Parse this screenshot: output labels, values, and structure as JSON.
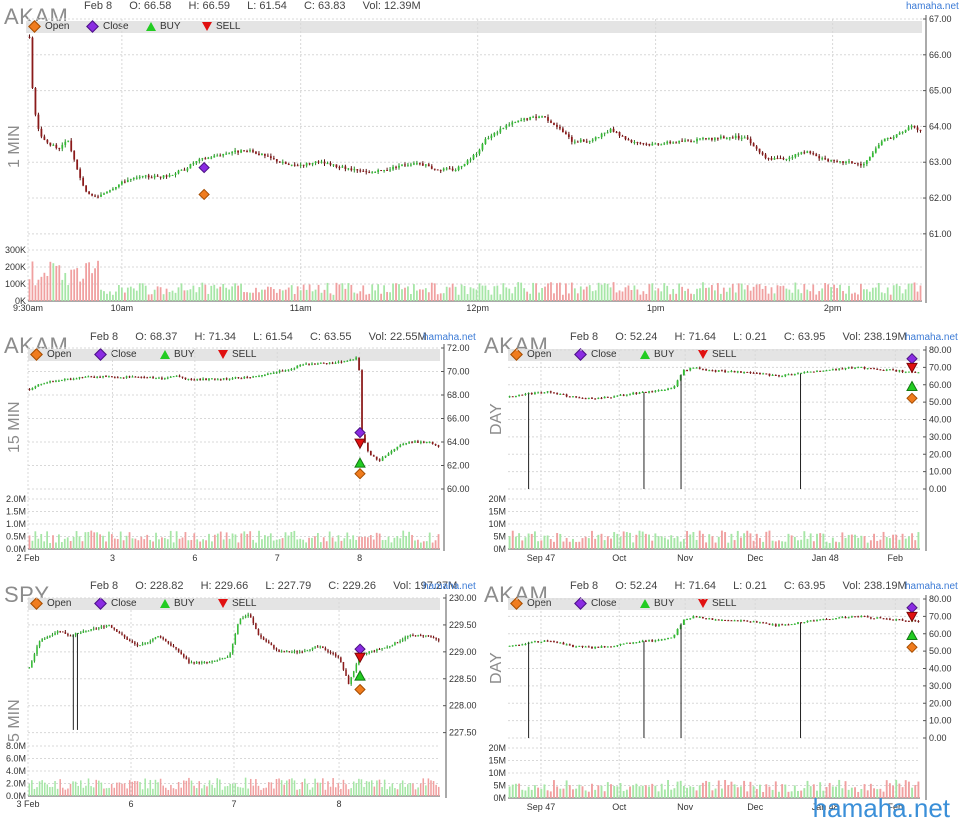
{
  "source_label": "hamaha.net",
  "brand_watermark": "hamaha.net",
  "legend": {
    "open": "Open",
    "close": "Close",
    "buy": "BUY",
    "sell": "SELL"
  },
  "colors": {
    "up": "#33bb33",
    "down": "#8b1a1a",
    "vol_up": "#a6e6a6",
    "vol_down": "#f0a0a0",
    "grid": "#d8d8d8",
    "legend_bg": "#e4e4e4",
    "open_marker": "#f07c1e",
    "close_marker": "#8a2be2",
    "buy_marker": "#22cc22",
    "sell_marker": "#e01010",
    "brand": "#3a8fd8"
  },
  "panels": [
    {
      "symbol": "AKAM",
      "period": "1 MIN",
      "header": {
        "date": "Feb 8",
        "o": "O: 66.58",
        "h": "H: 66.59",
        "l": "L: 61.54",
        "c": "C: 63.83",
        "vol": "Vol: 12.39M"
      },
      "chart_data": {
        "type": "candlestick",
        "price_ticks": [
          "67.00",
          "66.00",
          "65.00",
          "64.00",
          "63.00",
          "62.00",
          "61.00"
        ],
        "price_range": [
          60.8,
          67.0
        ],
        "volume_ticks": [
          "300K",
          "200K",
          "100K",
          "0K"
        ],
        "x_ticks": [
          "9:30am",
          "10am",
          "11am",
          "12pm",
          "1pm",
          "2pm"
        ],
        "price_path": [
          [
            0,
            66.5
          ],
          [
            4,
            64.6
          ],
          [
            10,
            63.8
          ],
          [
            20,
            63.5
          ],
          [
            30,
            63.4
          ],
          [
            40,
            63.6
          ],
          [
            50,
            62.7
          ],
          [
            60,
            62.1
          ],
          [
            70,
            62.0
          ],
          [
            80,
            62.2
          ],
          [
            100,
            62.5
          ],
          [
            120,
            62.6
          ],
          [
            140,
            62.6
          ],
          [
            160,
            62.8
          ],
          [
            170,
            63.0
          ],
          [
            180,
            63.1
          ],
          [
            210,
            63.3
          ],
          [
            230,
            63.3
          ],
          [
            250,
            63.1
          ],
          [
            270,
            62.9
          ],
          [
            300,
            63.0
          ],
          [
            330,
            62.8
          ],
          [
            350,
            62.7
          ],
          [
            370,
            62.8
          ],
          [
            380,
            62.9
          ],
          [
            400,
            63.0
          ],
          [
            420,
            62.8
          ],
          [
            440,
            62.8
          ],
          [
            460,
            63.2
          ],
          [
            470,
            63.6
          ],
          [
            480,
            63.8
          ],
          [
            490,
            64.0
          ],
          [
            510,
            64.2
          ],
          [
            530,
            64.3
          ],
          [
            545,
            64.0
          ],
          [
            560,
            63.6
          ],
          [
            580,
            63.6
          ],
          [
            600,
            63.9
          ],
          [
            620,
            63.6
          ],
          [
            640,
            63.5
          ],
          [
            680,
            63.6
          ],
          [
            720,
            63.7
          ],
          [
            740,
            63.7
          ],
          [
            760,
            63.1
          ],
          [
            780,
            63.1
          ],
          [
            800,
            63.3
          ],
          [
            830,
            63.0
          ],
          [
            850,
            63.0
          ],
          [
            860,
            62.9
          ],
          [
            870,
            63.2
          ],
          [
            880,
            63.6
          ],
          [
            900,
            63.8
          ],
          [
            910,
            64.0
          ],
          [
            920,
            63.9
          ]
        ],
        "markers": {
          "open": 62.1,
          "close": 62.85,
          "buy": null,
          "sell": null
        }
      }
    },
    {
      "symbol": "AKAM",
      "period": "15 MIN",
      "header": {
        "date": "Feb 8",
        "o": "O: 68.37",
        "h": "H: 71.34",
        "l": "L: 61.54",
        "c": "C: 63.55",
        "vol": "Vol: 22.55M"
      },
      "chart_data": {
        "type": "candlestick",
        "price_ticks": [
          "72.00",
          "70.00",
          "68.00",
          "66.00",
          "64.00",
          "62.00",
          "60.00"
        ],
        "price_range": [
          60.0,
          72.0
        ],
        "volume_ticks": [
          "2.0M",
          "1.5M",
          "1.0M",
          "0.5M",
          "0.0M"
        ],
        "x_ticks": [
          "2 Feb",
          "3",
          "6",
          "7",
          "8"
        ],
        "price_path": [
          [
            0,
            68.5
          ],
          [
            10,
            68.9
          ],
          [
            30,
            69.3
          ],
          [
            60,
            69.6
          ],
          [
            90,
            69.5
          ],
          [
            110,
            69.6
          ],
          [
            130,
            69.4
          ],
          [
            150,
            69.6
          ],
          [
            160,
            69.3
          ],
          [
            200,
            69.4
          ],
          [
            230,
            69.6
          ],
          [
            250,
            70.0
          ],
          [
            265,
            70.3
          ],
          [
            270,
            70.6
          ],
          [
            300,
            70.7
          ],
          [
            320,
            70.9
          ],
          [
            330,
            71.2
          ],
          [
            332,
            65.0
          ],
          [
            340,
            63.0
          ],
          [
            350,
            62.4
          ],
          [
            360,
            63.0
          ],
          [
            370,
            63.6
          ],
          [
            380,
            64.0
          ],
          [
            400,
            64.0
          ],
          [
            410,
            63.6
          ]
        ],
        "markers": {
          "open": 61.3,
          "close": 64.8,
          "buy": 62.2,
          "sell": 63.9
        }
      }
    },
    {
      "symbol": "AKAM",
      "period": "DAY",
      "header": {
        "date": "Feb 8",
        "o": "O: 52.24",
        "h": "H: 71.64",
        "l": "L: 0.21",
        "c": "C: 63.95",
        "vol": "Vol: 238.19M"
      },
      "chart_data": {
        "type": "candlestick",
        "price_ticks": [
          "80.00",
          "70.00",
          "60.00",
          "50.00",
          "40.00",
          "30.00",
          "20.00",
          "10.00",
          "0.00"
        ],
        "price_range": [
          0.0,
          80.0
        ],
        "volume_ticks": [
          "20M",
          "15M",
          "10M",
          "5M",
          "0M"
        ],
        "x_ticks": [
          "Sep 47",
          "Oct",
          "Nov",
          "Dec",
          "Jan 48",
          "Feb"
        ],
        "price_path": [
          [
            0,
            53
          ],
          [
            20,
            55
          ],
          [
            40,
            56
          ],
          [
            60,
            53
          ],
          [
            80,
            52
          ],
          [
            100,
            53
          ],
          [
            120,
            55
          ],
          [
            140,
            56
          ],
          [
            160,
            58
          ],
          [
            170,
            68
          ],
          [
            180,
            70
          ],
          [
            200,
            68
          ],
          [
            240,
            67
          ],
          [
            260,
            65
          ],
          [
            280,
            66
          ],
          [
            300,
            68
          ],
          [
            320,
            69
          ],
          [
            340,
            70
          ],
          [
            360,
            69
          ],
          [
            380,
            68
          ],
          [
            400,
            67
          ]
        ],
        "markers": {
          "open": 52.2,
          "close": 75.0,
          "buy": 59.0,
          "sell": 70.0
        }
      }
    },
    {
      "symbol": "SPY",
      "period": "5 MIN",
      "header": {
        "date": "Feb 8",
        "o": "O: 228.82",
        "h": "H: 229.66",
        "l": "L: 227.79",
        "c": "C: 229.26",
        "vol": "Vol: 197.27M"
      },
      "chart_data": {
        "type": "candlestick",
        "price_ticks": [
          "230.00",
          "229.50",
          "229.00",
          "228.50",
          "228.00",
          "227.50"
        ],
        "price_range": [
          227.4,
          230.0
        ],
        "volume_ticks": [
          "8.0M",
          "6.0M",
          "4.0M",
          "2.0M",
          "0.0M"
        ],
        "x_ticks": [
          "3 Feb",
          "6",
          "7",
          "8"
        ],
        "price_path": [
          [
            0,
            228.7
          ],
          [
            10,
            229.2
          ],
          [
            20,
            229.3
          ],
          [
            30,
            229.4
          ],
          [
            40,
            229.3
          ],
          [
            60,
            229.4
          ],
          [
            80,
            229.5
          ],
          [
            100,
            229.2
          ],
          [
            110,
            229.1
          ],
          [
            130,
            229.3
          ],
          [
            150,
            229.0
          ],
          [
            160,
            228.8
          ],
          [
            180,
            228.8
          ],
          [
            200,
            228.9
          ],
          [
            210,
            229.6
          ],
          [
            220,
            229.7
          ],
          [
            230,
            229.3
          ],
          [
            250,
            229.0
          ],
          [
            270,
            229.0
          ],
          [
            290,
            229.1
          ],
          [
            310,
            228.9
          ],
          [
            320,
            228.4
          ],
          [
            330,
            228.9
          ],
          [
            340,
            229.0
          ],
          [
            360,
            229.1
          ],
          [
            380,
            229.3
          ],
          [
            400,
            229.3
          ],
          [
            410,
            229.2
          ]
        ],
        "markers": {
          "open": 228.3,
          "close": 229.05,
          "buy": 228.55,
          "sell": 228.9
        }
      }
    },
    {
      "symbol": "AKAM",
      "period": "DAY",
      "header": {
        "date": "Feb 8",
        "o": "O: 52.24",
        "h": "H: 71.64",
        "l": "L: 0.21",
        "c": "C: 63.95",
        "vol": "Vol: 238.19M"
      },
      "chart_data": {
        "type": "candlestick",
        "price_ticks": [
          "80.00",
          "70.00",
          "60.00",
          "50.00",
          "40.00",
          "30.00",
          "20.00",
          "10.00",
          "0.00"
        ],
        "price_range": [
          0.0,
          80.0
        ],
        "volume_ticks": [
          "20M",
          "15M",
          "10M",
          "5M",
          "0M"
        ],
        "x_ticks": [
          "Sep 47",
          "Oct",
          "Nov",
          "Dec",
          "Jan 48",
          "Feb"
        ],
        "price_path": [
          [
            0,
            53
          ],
          [
            20,
            55
          ],
          [
            40,
            56
          ],
          [
            60,
            53
          ],
          [
            80,
            52
          ],
          [
            100,
            53
          ],
          [
            120,
            55
          ],
          [
            140,
            56
          ],
          [
            160,
            58
          ],
          [
            170,
            68
          ],
          [
            180,
            70
          ],
          [
            200,
            68
          ],
          [
            240,
            67
          ],
          [
            260,
            65
          ],
          [
            280,
            66
          ],
          [
            300,
            68
          ],
          [
            320,
            69
          ],
          [
            340,
            70
          ],
          [
            360,
            69
          ],
          [
            380,
            68
          ],
          [
            400,
            67
          ]
        ],
        "markers": {
          "open": 52.2,
          "close": 75.0,
          "buy": 59.0,
          "sell": 70.0
        }
      }
    }
  ]
}
